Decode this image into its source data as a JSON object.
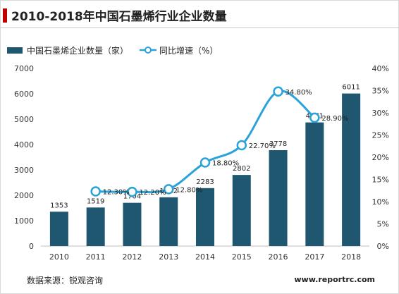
{
  "header": {
    "title": "2010-2018年中国石墨烯行业企业数量"
  },
  "footer": {
    "source": "数据来源：锐观咨询",
    "website": "www.reportrc.com"
  },
  "colors": {
    "bar": "#1f5670",
    "line": "#29a3d9",
    "accent": "#c00000"
  },
  "chart_data": {
    "type": "bar",
    "title": "2010-2018年中国石墨烯行业企业数量",
    "categories": [
      "2010",
      "2011",
      "2012",
      "2013",
      "2014",
      "2015",
      "2016",
      "2017",
      "2018"
    ],
    "series": [
      {
        "name": "中国石墨烯企业数量（家）",
        "type": "bar",
        "axis": "left",
        "values": [
          1353,
          1519,
          1704,
          1922,
          2283,
          2802,
          3778,
          4871,
          6011
        ],
        "labels": [
          "1353",
          "1519",
          "1704",
          "1922",
          "2283",
          "2802",
          "3778",
          "4871",
          "6011"
        ]
      },
      {
        "name": "同比增速（%）",
        "type": "line",
        "axis": "right",
        "x": [
          "2011",
          "2012",
          "2013",
          "2014",
          "2015",
          "2016",
          "2017"
        ],
        "values": [
          12.3,
          12.2,
          12.8,
          18.8,
          22.7,
          34.8,
          28.9
        ],
        "labels": [
          "12.30%",
          "12.20%",
          "12.80%",
          "18.80%",
          "22.70%",
          "34.80%",
          "28.90%"
        ]
      }
    ],
    "ylim": [
      0,
      7000
    ],
    "y_ticks": [
      "0",
      "1000",
      "2000",
      "3000",
      "4000",
      "5000",
      "6000",
      "7000"
    ],
    "y2lim": [
      0,
      40
    ],
    "y2_ticks": [
      "0%",
      "5%",
      "10%",
      "15%",
      "20%",
      "25%",
      "30%",
      "35%",
      "40%"
    ],
    "grid": false,
    "legend": "top-left"
  }
}
